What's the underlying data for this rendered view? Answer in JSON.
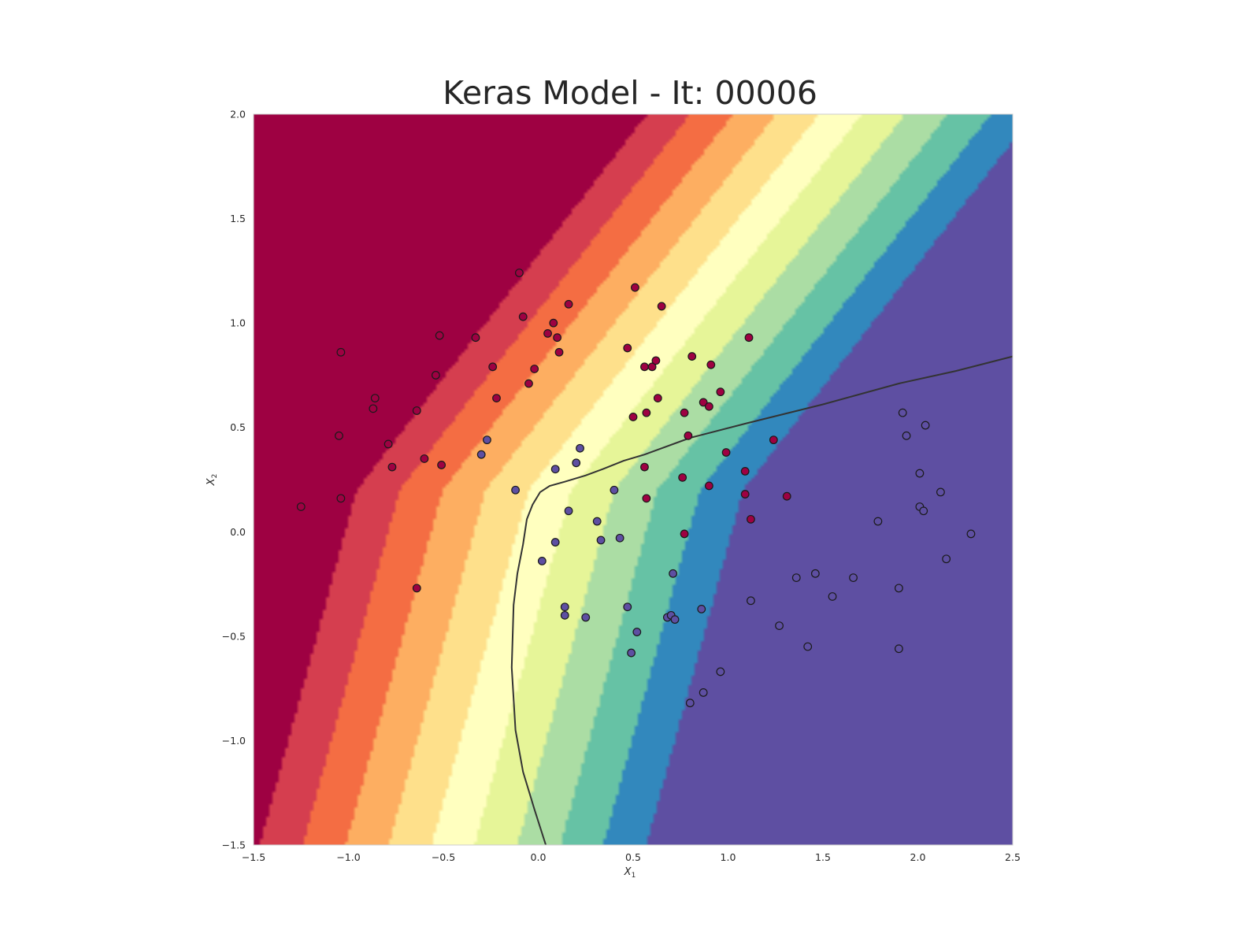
{
  "chart_data": {
    "type": "scatter",
    "title": "Keras Model - It: 00006",
    "xlabel": "X",
    "xlabel_sub": "1",
    "ylabel": "X",
    "ylabel_sub": "2",
    "xlim": [
      -1.5,
      2.5
    ],
    "ylim": [
      -1.5,
      2.0
    ],
    "xticks": [
      -1.5,
      -1.0,
      -0.5,
      0.0,
      0.5,
      1.0,
      1.5,
      2.0,
      2.5
    ],
    "xtick_labels": [
      "−1.5",
      "−1.0",
      "−0.5",
      "0.0",
      "0.5",
      "1.0",
      "1.5",
      "2.0",
      "2.5"
    ],
    "yticks": [
      -1.5,
      -1.0,
      -0.5,
      0.0,
      0.5,
      1.0,
      1.5,
      2.0
    ],
    "ytick_labels": [
      "−1.5",
      "−1.0",
      "−0.5",
      "0.0",
      "0.5",
      "1.0",
      "1.5",
      "2.0"
    ],
    "grid": false,
    "background": "filled contour of model output, Spectral colormap",
    "colormap": [
      "#5e4fa2",
      "#3288bd",
      "#66c2a5",
      "#abdda4",
      "#e6f598",
      "#ffffbf",
      "#fee08b",
      "#fdae61",
      "#f46d43",
      "#d53e4f",
      "#9e0142"
    ],
    "decision_boundary": [
      [
        0.04,
        -1.5
      ],
      [
        -0.02,
        -1.33
      ],
      [
        -0.08,
        -1.15
      ],
      [
        -0.12,
        -0.95
      ],
      [
        -0.14,
        -0.65
      ],
      [
        -0.13,
        -0.35
      ],
      [
        -0.11,
        -0.2
      ],
      [
        -0.08,
        -0.06
      ],
      [
        -0.06,
        0.06
      ],
      [
        -0.03,
        0.13
      ],
      [
        0.01,
        0.19
      ],
      [
        0.06,
        0.22
      ],
      [
        0.14,
        0.24
      ],
      [
        0.25,
        0.27
      ],
      [
        0.34,
        0.3
      ],
      [
        0.45,
        0.34
      ],
      [
        0.56,
        0.37
      ],
      [
        0.8,
        0.45
      ],
      [
        1.1,
        0.52
      ],
      [
        1.5,
        0.61
      ],
      [
        1.9,
        0.71
      ],
      [
        2.2,
        0.77
      ],
      [
        2.5,
        0.84
      ]
    ],
    "series": [
      {
        "color": "#9e0142",
        "points": [
          [
            -1.25,
            0.12
          ],
          [
            -1.04,
            0.86
          ],
          [
            -1.05,
            0.46
          ],
          [
            -1.04,
            0.16
          ],
          [
            -0.86,
            0.64
          ],
          [
            -0.87,
            0.59
          ],
          [
            -0.79,
            0.42
          ],
          [
            -0.77,
            0.31
          ],
          [
            -0.64,
            0.58
          ],
          [
            -0.6,
            0.35
          ],
          [
            -0.54,
            0.75
          ],
          [
            -0.52,
            0.94
          ],
          [
            -0.51,
            0.32
          ],
          [
            -0.64,
            -0.27
          ],
          [
            -0.33,
            0.93
          ],
          [
            -0.24,
            0.79
          ],
          [
            -0.22,
            0.64
          ],
          [
            -0.1,
            1.24
          ],
          [
            -0.08,
            1.03
          ],
          [
            -0.05,
            0.71
          ],
          [
            -0.02,
            0.78
          ],
          [
            0.05,
            0.95
          ],
          [
            0.08,
            1.0
          ],
          [
            0.1,
            0.93
          ],
          [
            0.11,
            0.86
          ],
          [
            0.16,
            1.09
          ],
          [
            0.47,
            0.88
          ],
          [
            0.51,
            1.17
          ],
          [
            0.5,
            0.55
          ],
          [
            0.56,
            0.79
          ],
          [
            0.57,
            0.57
          ],
          [
            0.6,
            0.79
          ],
          [
            0.62,
            0.82
          ],
          [
            0.63,
            0.64
          ],
          [
            0.65,
            1.08
          ],
          [
            0.56,
            0.31
          ],
          [
            0.57,
            0.16
          ],
          [
            0.76,
            0.26
          ],
          [
            0.77,
            0.57
          ],
          [
            0.79,
            0.46
          ],
          [
            0.81,
            0.84
          ],
          [
            0.87,
            0.62
          ],
          [
            0.9,
            0.6
          ],
          [
            0.9,
            0.22
          ],
          [
            0.91,
            0.8
          ],
          [
            0.96,
            0.67
          ],
          [
            0.99,
            0.38
          ],
          [
            1.09,
            0.29
          ],
          [
            1.09,
            0.18
          ],
          [
            1.11,
            0.93
          ],
          [
            1.12,
            0.06
          ],
          [
            1.24,
            0.44
          ],
          [
            1.31,
            0.17
          ],
          [
            0.77,
            -0.01
          ]
        ]
      },
      {
        "color": "#5e4fa2",
        "points": [
          [
            -0.3,
            0.37
          ],
          [
            -0.27,
            0.44
          ],
          [
            -0.12,
            0.2
          ],
          [
            0.02,
            -0.14
          ],
          [
            0.09,
            -0.05
          ],
          [
            0.09,
            0.3
          ],
          [
            0.14,
            -0.36
          ],
          [
            0.14,
            -0.4
          ],
          [
            0.16,
            0.1
          ],
          [
            0.2,
            0.33
          ],
          [
            0.22,
            0.4
          ],
          [
            0.25,
            -0.41
          ],
          [
            0.31,
            0.05
          ],
          [
            0.33,
            -0.04
          ],
          [
            0.4,
            0.2
          ],
          [
            0.43,
            -0.03
          ],
          [
            0.47,
            -0.36
          ],
          [
            0.49,
            -0.58
          ],
          [
            0.52,
            -0.48
          ],
          [
            0.68,
            -0.41
          ],
          [
            0.7,
            -0.4
          ],
          [
            0.71,
            -0.2
          ],
          [
            0.72,
            -0.42
          ],
          [
            0.8,
            -0.82
          ],
          [
            0.86,
            -0.37
          ],
          [
            0.87,
            -0.77
          ],
          [
            0.96,
            -0.67
          ],
          [
            1.12,
            -0.33
          ],
          [
            1.27,
            -0.45
          ],
          [
            1.36,
            -0.22
          ],
          [
            1.42,
            -0.55
          ],
          [
            1.46,
            -0.2
          ],
          [
            1.55,
            -0.31
          ],
          [
            1.66,
            -0.22
          ],
          [
            1.79,
            0.05
          ],
          [
            1.9,
            -0.27
          ],
          [
            1.9,
            -0.56
          ],
          [
            1.92,
            0.57
          ],
          [
            1.94,
            0.46
          ],
          [
            2.01,
            0.28
          ],
          [
            2.01,
            0.12
          ],
          [
            2.03,
            0.1
          ],
          [
            2.04,
            0.51
          ],
          [
            2.12,
            0.19
          ],
          [
            2.15,
            -0.13
          ],
          [
            2.28,
            -0.01
          ]
        ]
      }
    ]
  }
}
